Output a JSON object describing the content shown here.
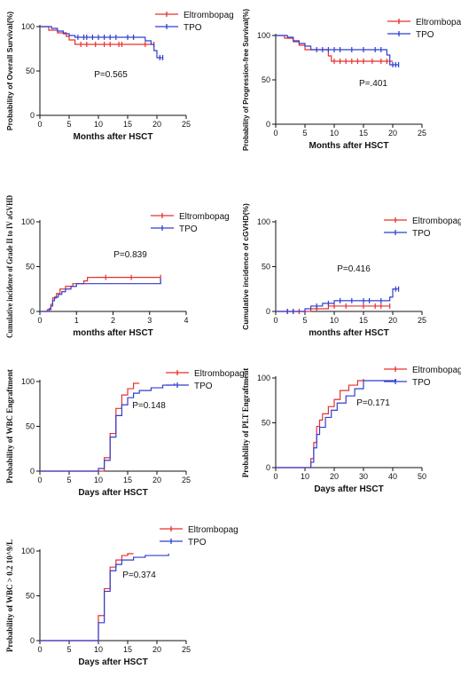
{
  "colors": {
    "eltrombopag": "#e8302e",
    "tpo": "#2f3fcf",
    "axis": "#111111"
  },
  "chart_data": [
    {
      "id": "os",
      "type": "line",
      "xlabel": "Months after HSCT",
      "ylabel": "Probability of Overall Survival(%)",
      "xlim": [
        0,
        25
      ],
      "ylim": [
        0,
        100
      ],
      "xticks": [
        0,
        5,
        10,
        15,
        20,
        25
      ],
      "yticks": [
        0,
        50,
        100
      ],
      "annotation": "P=0.565",
      "legend": [
        "Eltrombopag",
        "TPO"
      ],
      "series": [
        {
          "name": "Eltrombopag",
          "x": [
            0,
            1.5,
            3,
            4.5,
            5,
            6,
            15,
            19.5
          ],
          "y": [
            100,
            96,
            93,
            89,
            85,
            80,
            80,
            80
          ],
          "censor_x": [
            7,
            8,
            9.5,
            11,
            12,
            13.5,
            14,
            18,
            19.5
          ]
        },
        {
          "name": "TPO",
          "x": [
            0,
            2,
            3,
            4,
            5,
            6,
            17,
            18,
            19,
            19.5,
            20,
            21
          ],
          "y": [
            100,
            98,
            95,
            92,
            90,
            88,
            88,
            84,
            80,
            73,
            65,
            65
          ],
          "censor_x": [
            6.5,
            7.5,
            8,
            9,
            10,
            11,
            12,
            13,
            15,
            16,
            20.5,
            21
          ]
        }
      ]
    },
    {
      "id": "pfs",
      "type": "line",
      "xlabel": "Months after HSCT",
      "ylabel": "Probability of Progression-free Survival(%)",
      "xlim": [
        0,
        25
      ],
      "ylim": [
        0,
        100
      ],
      "xticks": [
        0,
        5,
        10,
        15,
        20,
        25
      ],
      "yticks": [
        0,
        50,
        100
      ],
      "annotation": "P=.401",
      "legend": [
        "Eltrombopag",
        "TPO"
      ],
      "series": [
        {
          "name": "Eltrombopag",
          "x": [
            0,
            1.5,
            3,
            4,
            5,
            9,
            9.5,
            20
          ],
          "y": [
            100,
            97,
            93,
            89,
            84,
            77,
            71,
            71
          ],
          "censor_x": [
            10,
            11,
            12,
            13,
            14,
            15,
            16.5,
            18,
            19
          ]
        },
        {
          "name": "TPO",
          "x": [
            0,
            2,
            3,
            4,
            5,
            6,
            18.5,
            19,
            19.5,
            21
          ],
          "y": [
            100,
            98,
            94,
            91,
            88,
            84,
            84,
            78,
            67,
            67
          ],
          "censor_x": [
            7,
            8,
            9,
            10,
            11,
            13,
            15,
            17,
            18,
            20,
            20.5,
            21
          ]
        }
      ]
    },
    {
      "id": "agvhd",
      "type": "line",
      "xlabel": "months after HSCT",
      "ylabel": "Cumulative incidence of Grade II to IV aGVHD",
      "xlim": [
        0,
        4
      ],
      "ylim": [
        0,
        100
      ],
      "xticks": [
        0,
        1,
        2,
        3,
        4
      ],
      "yticks": [
        0,
        50,
        100
      ],
      "annotation": "P=0.839",
      "legend": [
        "Eltrombopag",
        "TPO"
      ],
      "series": [
        {
          "name": "Eltrombopag",
          "x": [
            0,
            0.2,
            0.3,
            0.35,
            0.45,
            0.55,
            0.7,
            0.9,
            1.2,
            1.3,
            3.3
          ],
          "y": [
            0,
            2,
            8,
            15,
            20,
            25,
            28,
            31,
            34,
            38,
            38
          ],
          "censor_x": [
            1.8,
            2.5,
            3.3
          ]
        },
        {
          "name": "TPO",
          "x": [
            0,
            0.25,
            0.3,
            0.35,
            0.4,
            0.5,
            0.6,
            0.7,
            0.85,
            1.0,
            3.3
          ],
          "y": [
            0,
            3,
            6,
            12,
            16,
            19,
            22,
            25,
            28,
            31,
            34
          ],
          "censor_x": [
            3.3
          ]
        }
      ]
    },
    {
      "id": "cgvhd",
      "type": "line",
      "xlabel": "months after HSCT",
      "ylabel": "Cumulative incidence of cGVHD(%)",
      "xlim": [
        0,
        25
      ],
      "ylim": [
        0,
        100
      ],
      "xticks": [
        0,
        5,
        10,
        15,
        20,
        25
      ],
      "yticks": [
        0,
        50,
        100
      ],
      "annotation": "P=0.416",
      "legend": [
        "Eltrombopag",
        "TPO"
      ],
      "series": [
        {
          "name": "Eltrombopag",
          "x": [
            0,
            5.5,
            6,
            9,
            19.5
          ],
          "y": [
            0,
            0,
            3,
            6,
            6
          ],
          "censor_x": [
            2,
            3,
            4,
            7,
            10,
            12,
            15,
            17,
            18,
            19.5
          ]
        },
        {
          "name": "TPO",
          "x": [
            0,
            4,
            5,
            6,
            8,
            10,
            19.5,
            20,
            21
          ],
          "y": [
            0,
            0,
            3,
            6,
            9,
            12,
            16,
            25,
            25
          ],
          "censor_x": [
            2,
            3,
            7,
            9,
            11,
            13,
            15,
            16,
            18,
            20.5,
            21
          ]
        }
      ]
    },
    {
      "id": "wbc",
      "type": "line",
      "xlabel": "Days after HSCT",
      "ylabel": "Probability of WBC Engraftment",
      "xlim": [
        0,
        25
      ],
      "ylim": [
        0,
        100
      ],
      "xticks": [
        0,
        5,
        10,
        15,
        20,
        25
      ],
      "yticks": [
        0,
        50,
        100
      ],
      "annotation": "P=0.148",
      "legend": [
        "Eltrombopag",
        "TPO"
      ],
      "series": [
        {
          "name": "Eltrombopag",
          "x": [
            0,
            10,
            11,
            12,
            13,
            14,
            15,
            16,
            17
          ],
          "y": [
            0,
            0,
            15,
            42,
            70,
            85,
            92,
            98,
            98
          ],
          "censor_x": []
        },
        {
          "name": "TPO",
          "x": [
            0,
            9.5,
            10,
            11,
            12,
            13,
            14,
            15,
            16,
            17,
            19,
            21,
            23
          ],
          "y": [
            0,
            0,
            3,
            12,
            38,
            62,
            74,
            82,
            87,
            90,
            93,
            96,
            98
          ],
          "censor_x": []
        }
      ]
    },
    {
      "id": "plt",
      "type": "line",
      "xlabel": "Days after HSCT",
      "ylabel": "Probability of PLT Engraftment",
      "xlim": [
        0,
        50
      ],
      "ylim": [
        0,
        100
      ],
      "xticks": [
        0,
        10,
        20,
        30,
        40,
        50
      ],
      "yticks": [
        0,
        50,
        100
      ],
      "annotation": "P=0.171",
      "legend": [
        "Eltrombopag",
        "TPO"
      ],
      "series": [
        {
          "name": "Eltrombopag",
          "x": [
            0,
            11,
            12,
            13,
            14,
            15,
            16,
            18,
            20,
            22,
            25,
            28,
            30
          ],
          "y": [
            0,
            0,
            10,
            28,
            46,
            53,
            60,
            68,
            76,
            86,
            92,
            97,
            99
          ],
          "censor_x": []
        },
        {
          "name": "TPO",
          "x": [
            0,
            11,
            12,
            13,
            14,
            15,
            17,
            19,
            21,
            24,
            27,
            30,
            41
          ],
          "y": [
            0,
            0,
            6,
            22,
            37,
            45,
            56,
            64,
            72,
            80,
            88,
            97,
            99
          ],
          "censor_x": []
        }
      ]
    },
    {
      "id": "wbc02",
      "type": "line",
      "xlabel": "Days after HSCT",
      "ylabel": "Probability of WBC > 0.2  10^9/L",
      "xlim": [
        0,
        25
      ],
      "ylim": [
        0,
        100
      ],
      "xticks": [
        0,
        5,
        10,
        15,
        20,
        25
      ],
      "yticks": [
        0,
        50,
        100
      ],
      "annotation": "P=0.374",
      "legend": [
        "Eltrombopag",
        "TPO"
      ],
      "series": [
        {
          "name": "Eltrombopag",
          "x": [
            0,
            9.5,
            10,
            11,
            12,
            13,
            14,
            15,
            16
          ],
          "y": [
            0,
            0,
            28,
            58,
            82,
            90,
            95,
            97,
            97
          ],
          "censor_x": []
        },
        {
          "name": "TPO",
          "x": [
            0,
            9.5,
            10,
            11,
            12,
            13,
            14,
            16,
            18,
            22
          ],
          "y": [
            0,
            0,
            20,
            55,
            78,
            85,
            90,
            93,
            95,
            97
          ],
          "censor_x": []
        }
      ]
    }
  ]
}
